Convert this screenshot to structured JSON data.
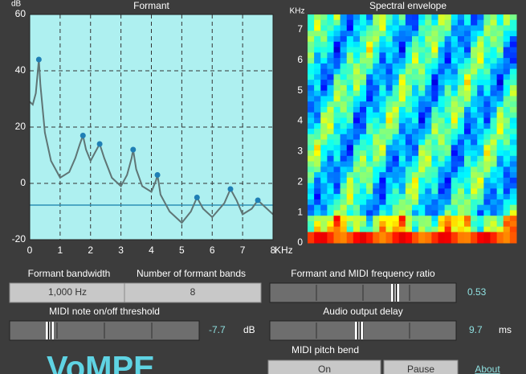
{
  "chart_data": [
    {
      "type": "line",
      "title": "Formant",
      "y_label": "dB",
      "x_label": "KHz",
      "x": [
        0,
        0.1,
        0.2,
        0.25,
        0.3,
        0.35,
        0.5,
        0.7,
        1.0,
        1.3,
        1.5,
        1.65,
        1.75,
        1.85,
        2.0,
        2.15,
        2.3,
        2.45,
        2.7,
        3.0,
        3.2,
        3.35,
        3.4,
        3.5,
        3.7,
        4.0,
        4.15,
        4.2,
        4.3,
        4.6,
        5.0,
        5.3,
        5.5,
        5.7,
        6.0,
        6.4,
        6.6,
        6.8,
        7.0,
        7.3,
        7.5,
        7.7,
        8.0
      ],
      "values": [
        29,
        28,
        32,
        38,
        44,
        35,
        18,
        8,
        2,
        4,
        9,
        14,
        17,
        12,
        8,
        11,
        14,
        9,
        2,
        -1,
        3,
        9,
        12,
        5,
        -1,
        -3,
        1,
        3,
        -4,
        -10,
        -14,
        -10,
        -5,
        -9,
        -12,
        -7,
        -2,
        -6,
        -11,
        -9,
        -6,
        -8,
        -11
      ],
      "color": "#5f7575",
      "peaks": {
        "x": [
          0.3,
          1.75,
          2.3,
          3.4,
          4.2,
          5.5,
          6.6,
          7.5
        ],
        "values": [
          44,
          17,
          14,
          12,
          3,
          -5,
          -2,
          -6
        ],
        "color": "#1f7fb5"
      },
      "threshold_color": "#2b8fb5",
      "background": "#aef0f0",
      "xlim": [
        0,
        8
      ],
      "xticks": [
        0,
        1,
        2,
        3,
        4,
        5,
        6,
        7,
        8
      ],
      "ylim": [
        -20,
        60
      ],
      "yticks": [
        -20,
        0,
        20,
        40,
        60
      ],
      "grid": true
    },
    {
      "type": "heatmap",
      "title": "Spectral envelope",
      "y_label": "KHz",
      "ylim": [
        0,
        7.5
      ],
      "yticks": [
        0,
        1,
        2,
        3,
        4,
        5,
        6,
        7
      ]
    }
  ],
  "controls": {
    "bandwidth": {
      "label": "Formant bandwidth",
      "value": "1,000 Hz"
    },
    "bands": {
      "label": "Number of formant bands",
      "value": 8
    },
    "ratio": {
      "label": "Formant and MIDI frequency ratio",
      "value": 0.53
    },
    "threshold": {
      "label": "MIDI note on/off threshold",
      "value": -7.7,
      "unit": "dB"
    },
    "delay": {
      "label": "Audio output delay",
      "value": 9.7,
      "unit": "ms"
    },
    "pitch_bend": {
      "label": "MIDI pitch bend",
      "on": "On",
      "pause": "Pause"
    },
    "about": "About"
  },
  "brand": "VoMPE"
}
